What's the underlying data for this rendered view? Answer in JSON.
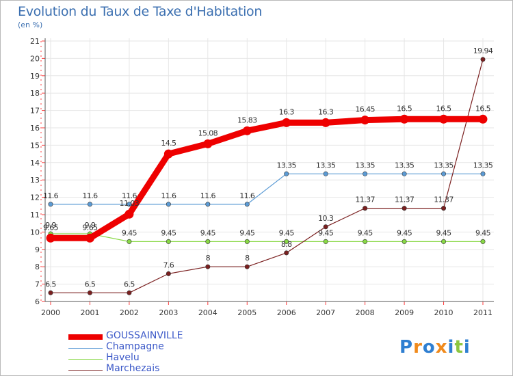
{
  "title": "Evolution du Taux de Taxe d'Habitation",
  "subtitle": "(en %)",
  "logo_text": "Proxiti",
  "chart_data": {
    "type": "line",
    "title": "Evolution du Taux de Taxe d'Habitation",
    "ylabel": "(en %)",
    "x": [
      "2000",
      "2001",
      "2002",
      "2003",
      "2004",
      "2005",
      "2006",
      "2007",
      "2008",
      "2009",
      "2010",
      "2011"
    ],
    "ylim": [
      6,
      21
    ],
    "yticks": [
      "6",
      "7",
      "8",
      "9",
      "10",
      "11",
      "12",
      "13",
      "14",
      "15",
      "16",
      "17",
      "18",
      "19",
      "20",
      "21"
    ],
    "grid": true,
    "legend_position": "bottom-left",
    "series": [
      {
        "name": "GOUSSAINVILLE",
        "color": "#ee0000",
        "values": [
          9.65,
          9.65,
          11.03,
          14.5,
          15.08,
          15.83,
          16.3,
          16.3,
          16.45,
          16.5,
          16.5,
          16.5
        ],
        "labels": [
          "9.65",
          "9.65",
          "11.03",
          "14.5",
          "15.08",
          "15.83",
          "16.3",
          "16.3",
          "16.45",
          "16.5",
          "16.5",
          "16.5"
        ]
      },
      {
        "name": "Champagne",
        "color": "#5b9bd5",
        "values": [
          11.6,
          11.6,
          11.6,
          11.6,
          11.6,
          11.6,
          13.35,
          13.35,
          13.35,
          13.35,
          13.35,
          13.35
        ],
        "labels": [
          "11.6",
          "11.6",
          "11.6",
          "11.6",
          "11.6",
          "11.6",
          "13.35",
          "13.35",
          "13.35",
          "13.35",
          "13.35",
          "13.35"
        ]
      },
      {
        "name": "Havelu",
        "color": "#88d845",
        "values": [
          9.9,
          9.9,
          9.45,
          9.45,
          9.45,
          9.45,
          9.45,
          9.45,
          9.45,
          9.45,
          9.45,
          9.45
        ],
        "labels": [
          "9.9",
          "9.9",
          "9.45",
          "9.45",
          "9.45",
          "9.45",
          "9.45",
          "9.45",
          "9.45",
          "9.45",
          "9.45",
          "9.45"
        ]
      },
      {
        "name": "Marchezais",
        "color": "#7a1f1f",
        "values": [
          6.5,
          6.5,
          6.5,
          7.6,
          8,
          8,
          8.8,
          10.3,
          11.37,
          11.37,
          11.37,
          19.94
        ],
        "labels": [
          "6.5",
          "6.5",
          "6.5",
          "7.6",
          "8",
          "8",
          "8.8",
          "10.3",
          "11.37",
          "11.37",
          "11.37",
          "19.94"
        ]
      }
    ]
  }
}
